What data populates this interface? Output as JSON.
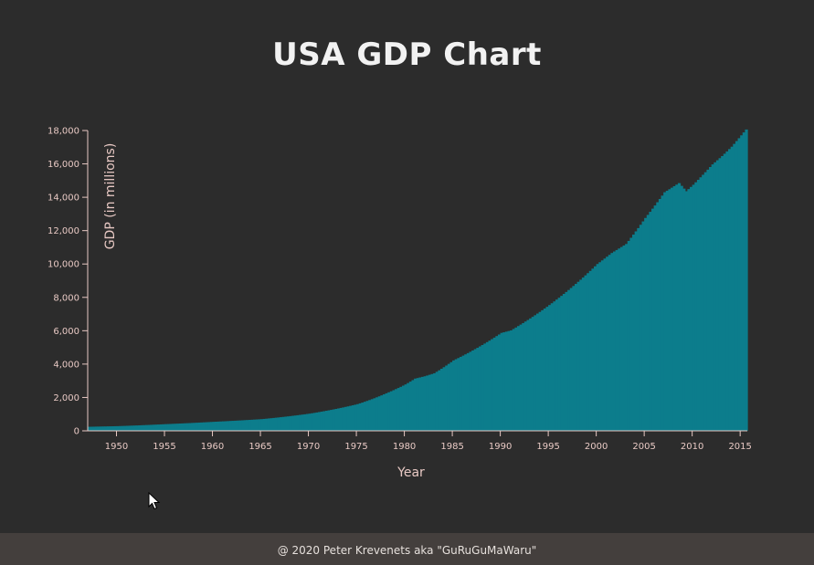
{
  "title": "USA GDP Chart",
  "footer": {
    "text": "@ 2020 Peter Krevenets aka \"GuRuGuMaWaru\""
  },
  "colors": {
    "background": "#2c2c2c",
    "bar": "#0c7d8c",
    "axis": "#e8c9c4",
    "title": "#f2f2f2",
    "footer_bg": "#443f3d"
  },
  "chart_data": {
    "type": "bar",
    "title": "USA GDP Chart",
    "xlabel": "Year",
    "ylabel": "GDP (in millions)",
    "ylim": [
      0,
      18000
    ],
    "xlim": [
      "1947-01-01",
      "2015-07-01"
    ],
    "x_ticks": [
      "1950",
      "1955",
      "1960",
      "1965",
      "1970",
      "1975",
      "1980",
      "1985",
      "1990",
      "1995",
      "2000",
      "2005",
      "2010",
      "2015"
    ],
    "y_ticks": [
      "0",
      "2,000",
      "4,000",
      "6,000",
      "8,000",
      "10,000",
      "12,000",
      "14,000",
      "16,000",
      "18,000"
    ],
    "frequency": "quarterly",
    "grid": false,
    "anchors": [
      {
        "date": "1947-01-01",
        "value": 243
      },
      {
        "date": "1950-01-01",
        "value": 280
      },
      {
        "date": "1955-01-01",
        "value": 400
      },
      {
        "date": "1960-01-01",
        "value": 540
      },
      {
        "date": "1965-01-01",
        "value": 700
      },
      {
        "date": "1970-01-01",
        "value": 1030
      },
      {
        "date": "1975-01-01",
        "value": 1600
      },
      {
        "date": "1978-01-01",
        "value": 2250
      },
      {
        "date": "1980-01-01",
        "value": 2780
      },
      {
        "date": "1981-01-01",
        "value": 3130
      },
      {
        "date": "1982-01-01",
        "value": 3270
      },
      {
        "date": "1983-01-01",
        "value": 3450
      },
      {
        "date": "1985-01-01",
        "value": 4220
      },
      {
        "date": "1990-01-01",
        "value": 5870
      },
      {
        "date": "1991-01-01",
        "value": 6020
      },
      {
        "date": "1995-01-01",
        "value": 7540
      },
      {
        "date": "2000-01-01",
        "value": 10000
      },
      {
        "date": "2001-07-01",
        "value": 10660
      },
      {
        "date": "2003-01-01",
        "value": 11200
      },
      {
        "date": "2005-01-01",
        "value": 12760
      },
      {
        "date": "2007-01-01",
        "value": 14300
      },
      {
        "date": "2008-07-01",
        "value": 14850
      },
      {
        "date": "2009-04-01",
        "value": 14360
      },
      {
        "date": "2010-01-01",
        "value": 14750
      },
      {
        "date": "2012-01-01",
        "value": 15970
      },
      {
        "date": "2013-01-01",
        "value": 16470
      },
      {
        "date": "2014-01-01",
        "value": 17030
      },
      {
        "date": "2015-07-01",
        "value": 18060
      }
    ]
  }
}
